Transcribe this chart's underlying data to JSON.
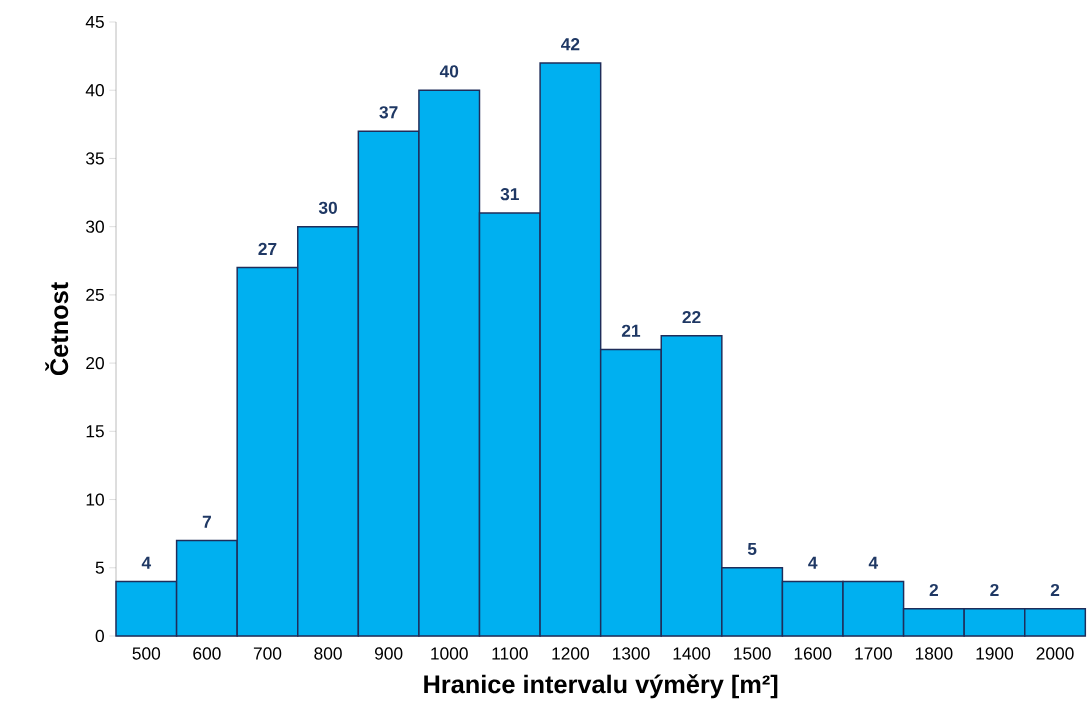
{
  "chart_data": {
    "type": "bar",
    "xlabel": "Hranice intervalu výměry [m²]",
    "ylabel": "Četnost",
    "categories": [
      "500",
      "600",
      "700",
      "800",
      "900",
      "1000",
      "1100",
      "1200",
      "1300",
      "1400",
      "1500",
      "1600",
      "1700",
      "1800",
      "1900",
      "2000"
    ],
    "values": [
      4,
      7,
      27,
      30,
      37,
      40,
      31,
      42,
      21,
      22,
      5,
      4,
      4,
      2,
      2,
      2
    ],
    "color": "#00b0f0",
    "ylim": [
      0,
      45
    ],
    "yticks": [
      0,
      5,
      10,
      15,
      20,
      25,
      30,
      35,
      40,
      45
    ],
    "data_labels": true,
    "grid": false
  }
}
